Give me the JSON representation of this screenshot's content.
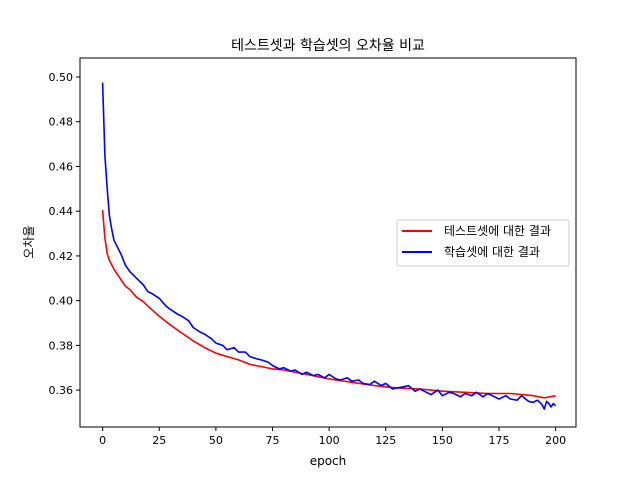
{
  "chart_data": {
    "type": "line",
    "title": "테스트셋과 학습셋의 오차율 비교",
    "xlabel": "epoch",
    "ylabel": "오차율",
    "xlim": [
      -10,
      209
    ],
    "ylim": [
      0.3435,
      0.5085
    ],
    "x_ticks": [
      0,
      25,
      50,
      75,
      100,
      125,
      150,
      175,
      200
    ],
    "y_ticks": [
      0.36,
      0.38,
      0.4,
      0.42,
      0.44,
      0.46,
      0.48,
      0.5
    ],
    "y_tick_labels": [
      "0.36",
      "0.38",
      "0.40",
      "0.42",
      "0.44",
      "0.46",
      "0.48",
      "0.50"
    ],
    "legend_position": "center-right",
    "grid": false,
    "series": [
      {
        "name": "테스트셋에 대한 결과",
        "color": "#ff0000",
        "x": [
          0,
          1,
          2,
          3,
          4,
          5,
          6,
          8,
          10,
          12,
          15,
          18,
          20,
          25,
          30,
          35,
          40,
          45,
          50,
          55,
          60,
          65,
          70,
          75,
          80,
          85,
          90,
          95,
          100,
          110,
          120,
          130,
          140,
          150,
          160,
          170,
          180,
          190,
          195,
          200
        ],
        "y": [
          0.4405,
          0.428,
          0.421,
          0.418,
          0.416,
          0.414,
          0.4125,
          0.4095,
          0.4065,
          0.405,
          0.4015,
          0.3995,
          0.3975,
          0.393,
          0.389,
          0.3855,
          0.382,
          0.379,
          0.3765,
          0.375,
          0.3735,
          0.3715,
          0.3705,
          0.3695,
          0.369,
          0.368,
          0.367,
          0.366,
          0.365,
          0.3635,
          0.362,
          0.361,
          0.3605,
          0.3595,
          0.359,
          0.3585,
          0.3585,
          0.3575,
          0.3565,
          0.3575
        ]
      },
      {
        "name": "학습셋에 대한 결과",
        "color": "#0000ff",
        "x": [
          0,
          1,
          2,
          3,
          4,
          5,
          6,
          8,
          10,
          12,
          15,
          18,
          20,
          22,
          25,
          28,
          30,
          33,
          35,
          38,
          40,
          43,
          45,
          48,
          50,
          53,
          55,
          58,
          60,
          63,
          65,
          68,
          70,
          73,
          75,
          78,
          80,
          83,
          85,
          88,
          90,
          93,
          95,
          98,
          100,
          103,
          105,
          108,
          110,
          113,
          115,
          118,
          120,
          123,
          125,
          128,
          130,
          133,
          135,
          138,
          140,
          143,
          145,
          148,
          150,
          153,
          155,
          158,
          160,
          163,
          165,
          168,
          170,
          173,
          175,
          178,
          180,
          183,
          185,
          188,
          190,
          192,
          194,
          195,
          196,
          197,
          198,
          199,
          200
        ],
        "y": [
          0.4975,
          0.465,
          0.45,
          0.438,
          0.432,
          0.427,
          0.425,
          0.421,
          0.416,
          0.413,
          0.41,
          0.407,
          0.404,
          0.403,
          0.401,
          0.3975,
          0.396,
          0.394,
          0.393,
          0.391,
          0.388,
          0.386,
          0.385,
          0.383,
          0.381,
          0.38,
          0.378,
          0.379,
          0.377,
          0.377,
          0.375,
          0.374,
          0.3735,
          0.3725,
          0.371,
          0.3695,
          0.37,
          0.3685,
          0.369,
          0.367,
          0.368,
          0.3665,
          0.367,
          0.3655,
          0.367,
          0.365,
          0.3645,
          0.3655,
          0.364,
          0.3645,
          0.363,
          0.3625,
          0.364,
          0.362,
          0.363,
          0.3605,
          0.361,
          0.3615,
          0.362,
          0.3595,
          0.3605,
          0.359,
          0.358,
          0.36,
          0.3575,
          0.359,
          0.3585,
          0.357,
          0.3585,
          0.3575,
          0.359,
          0.357,
          0.3585,
          0.357,
          0.356,
          0.3575,
          0.356,
          0.3555,
          0.3575,
          0.355,
          0.3545,
          0.3555,
          0.3535,
          0.3515,
          0.355,
          0.354,
          0.3525,
          0.354,
          0.353
        ]
      }
    ]
  }
}
